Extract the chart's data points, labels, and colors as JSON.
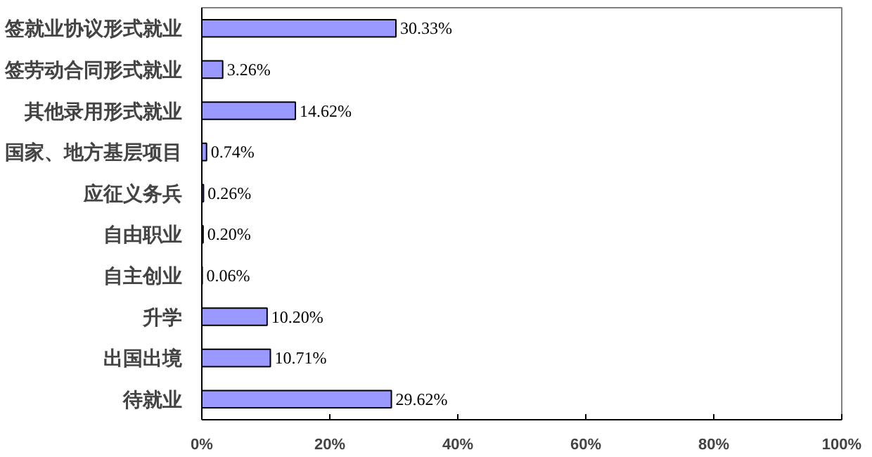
{
  "chart_data": {
    "type": "bar",
    "orientation": "horizontal",
    "categories": [
      "签就业协议形式就业",
      "签劳动合同形式就业",
      "其他录用形式就业",
      "国家、地方基层项目",
      "应征义务兵",
      "自由职业",
      "自主创业",
      "升学",
      "出国出境",
      "待就业"
    ],
    "values": [
      30.33,
      3.26,
      14.62,
      0.74,
      0.26,
      0.2,
      0.06,
      10.2,
      10.71,
      29.62
    ],
    "value_labels": [
      "30.33%",
      "3.26%",
      "14.62%",
      "0.74%",
      "0.26%",
      "0.20%",
      "0.06%",
      "10.20%",
      "10.71%",
      "29.62%"
    ],
    "color": "#9999ff",
    "xlim": [
      0,
      100
    ],
    "xticks": [
      {
        "value": 0,
        "label": "0%"
      },
      {
        "value": 20,
        "label": "20%"
      },
      {
        "value": 40,
        "label": "40%"
      },
      {
        "value": 60,
        "label": "60%"
      },
      {
        "value": 80,
        "label": "80%"
      },
      {
        "value": 100,
        "label": "100%"
      }
    ],
    "grid": false
  }
}
